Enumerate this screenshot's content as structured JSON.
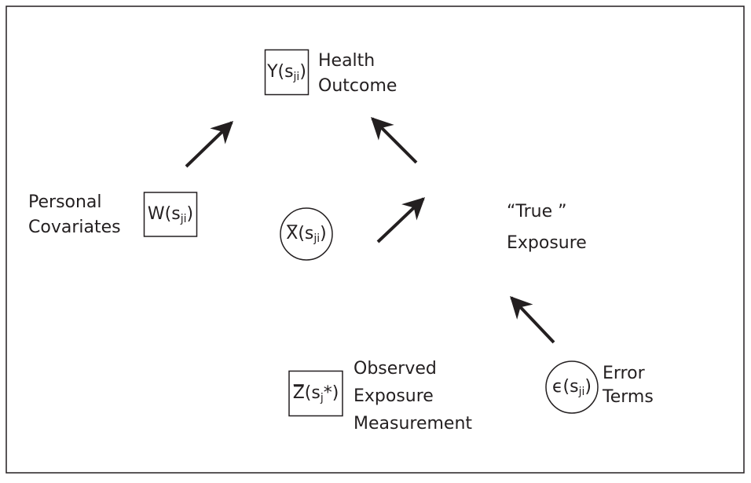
{
  "nodes": [
    {
      "shape": "box",
      "symbol": [
        {
          "text": "Y(s"
        },
        {
          "text": "ji",
          "sub": true
        },
        {
          "text": ")"
        }
      ],
      "label": [
        "Health",
        "Outcome"
      ]
    },
    {
      "shape": "box",
      "symbol": [
        {
          "text": "W(s"
        },
        {
          "text": "ji",
          "sub": true
        },
        {
          "text": ")"
        }
      ],
      "label": [
        "Personal",
        "Covariates"
      ]
    },
    {
      "shape": "circle",
      "overbar": true,
      "symbol": [
        {
          "text": "X(s"
        },
        {
          "text": "ji",
          "sub": true
        },
        {
          "text": ")"
        }
      ],
      "label": [
        "“True ”",
        "Exposure"
      ]
    },
    {
      "shape": "box",
      "overbar": true,
      "symbol": [
        {
          "text": "Z(s"
        },
        {
          "text": "j",
          "sub": true
        },
        {
          "text": "*)"
        }
      ],
      "label": [
        "Observed",
        "Exposure",
        "Measurement"
      ]
    },
    {
      "shape": "circle",
      "symbol": [
        {
          "text": "ϵ(s"
        },
        {
          "text": "ji",
          "sub": true
        },
        {
          "text": ")"
        }
      ],
      "label": [
        "Error",
        "Terms"
      ]
    }
  ]
}
